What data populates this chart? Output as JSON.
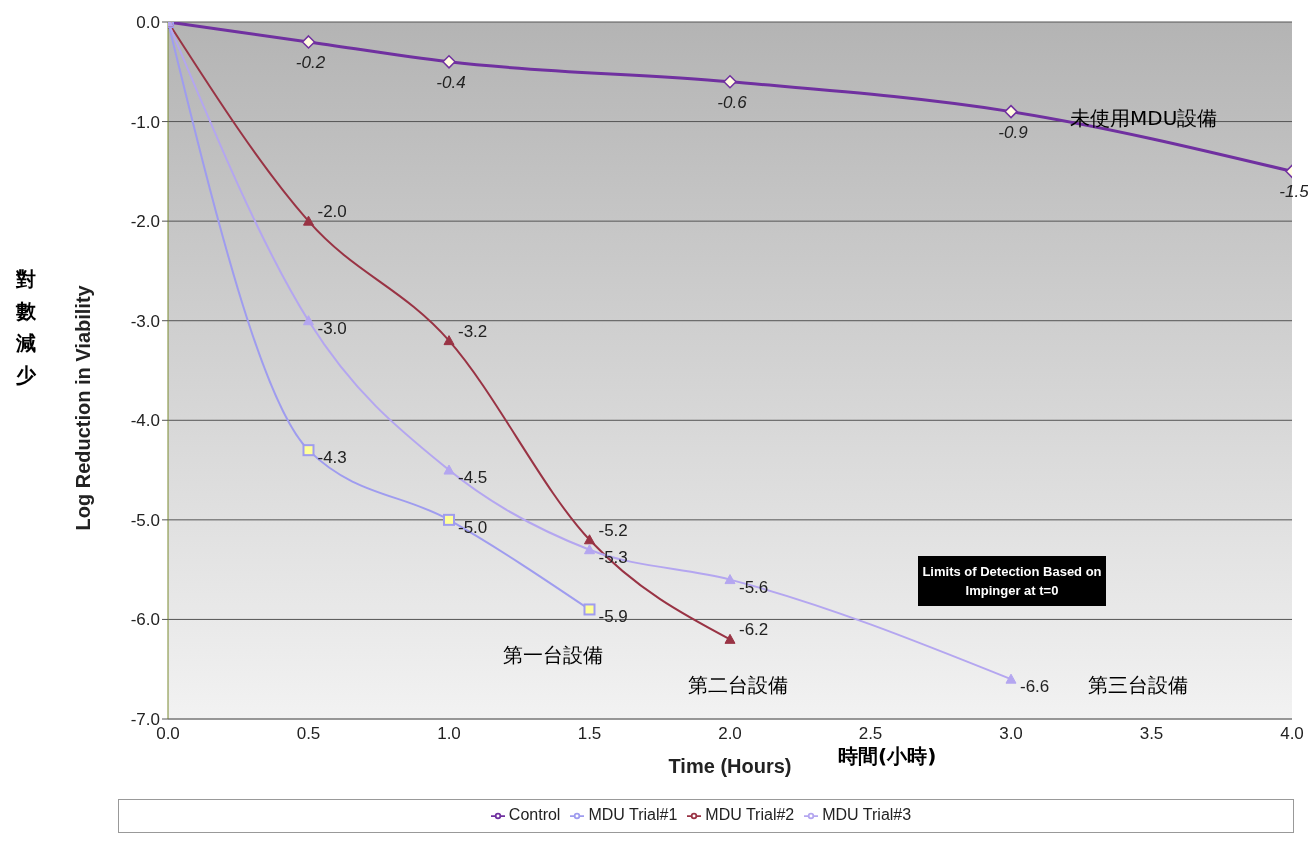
{
  "chart_data": {
    "type": "line",
    "xlabel": "Time (Hours)",
    "ylabel": "Log Reduction in Viability",
    "xlim": [
      0,
      4
    ],
    "xticks": [
      {
        "value": 0,
        "label": "0.0"
      },
      {
        "value": 0.5,
        "label": "0.5"
      },
      {
        "value": 1,
        "label": "1.0"
      },
      {
        "value": 1.5,
        "label": "1.5"
      },
      {
        "value": 2,
        "label": "2.0"
      },
      {
        "value": 2.5,
        "label": "2.5"
      },
      {
        "value": 3,
        "label": "3.0"
      },
      {
        "value": 3.5,
        "label": "3.5"
      },
      {
        "value": 4,
        "label": "4.0"
      }
    ],
    "ylim": [
      -7,
      0
    ],
    "yticks": [
      {
        "value": 0,
        "label": "0.0"
      },
      {
        "value": -1,
        "label": "-1.0"
      },
      {
        "value": -2,
        "label": "-2.0"
      },
      {
        "value": -3,
        "label": "-3.0"
      },
      {
        "value": -4,
        "label": "-4.0"
      },
      {
        "value": -5,
        "label": "-5.0"
      },
      {
        "value": -6,
        "label": "-6.0"
      },
      {
        "value": -7,
        "label": "-7.0"
      }
    ],
    "grid": "y",
    "legend": "bottom",
    "line_style": "solid",
    "series": [
      {
        "name": "Control",
        "color": "#7030a0",
        "marker": "diamond",
        "x": [
          0,
          0.5,
          1,
          2,
          3,
          4
        ],
        "values": [
          0,
          -0.2,
          -0.4,
          -0.6,
          -0.9,
          -1.5
        ],
        "value_labels": [
          null,
          "-0.2",
          "-0.4",
          "-0.6",
          "-0.9",
          "-1.5"
        ]
      },
      {
        "name": "MDU Trial#1",
        "color": "#9f9cef",
        "marker": "square",
        "x": [
          0,
          0.5,
          1,
          1.5
        ],
        "values": [
          0,
          -4.3,
          -5.0,
          -5.9
        ],
        "value_labels": [
          null,
          "-4.3",
          "-5.0",
          "-5.9"
        ]
      },
      {
        "name": "MDU Trial#2",
        "color": "#993344",
        "marker": "triangle",
        "x": [
          0,
          0.5,
          1,
          1.5,
          2
        ],
        "values": [
          0,
          -2.0,
          -3.2,
          -5.2,
          -6.2
        ],
        "value_labels": [
          null,
          "-2.0",
          "-3.2",
          "-5.2",
          "-6.2"
        ]
      },
      {
        "name": "MDU Trial#3",
        "color": "#b4a6f0",
        "marker": "triangle",
        "x": [
          0,
          0.5,
          1,
          1.5,
          2,
          3
        ],
        "values": [
          0,
          -3.0,
          -4.5,
          -5.3,
          -5.6,
          -6.6
        ],
        "value_labels": [
          null,
          "-3.0",
          "-4.5",
          "-5.3",
          "-5.6",
          "-6.6"
        ]
      }
    ],
    "annotations": [
      "未使用MDU設備",
      "第一台設備",
      "第二台設備",
      "第三台設備",
      "Limits of Detection Based on Impinger at t=0",
      "時間(小時)",
      "對數減少"
    ]
  }
}
